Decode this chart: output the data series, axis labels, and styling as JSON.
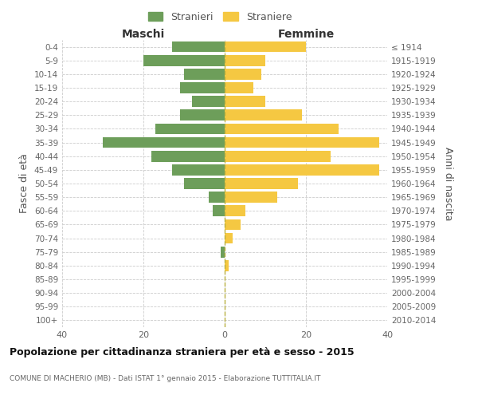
{
  "age_groups": [
    "0-4",
    "5-9",
    "10-14",
    "15-19",
    "20-24",
    "25-29",
    "30-34",
    "35-39",
    "40-44",
    "45-49",
    "50-54",
    "55-59",
    "60-64",
    "65-69",
    "70-74",
    "75-79",
    "80-84",
    "85-89",
    "90-94",
    "95-99",
    "100+"
  ],
  "birth_years": [
    "2010-2014",
    "2005-2009",
    "2000-2004",
    "1995-1999",
    "1990-1994",
    "1985-1989",
    "1980-1984",
    "1975-1979",
    "1970-1974",
    "1965-1969",
    "1960-1964",
    "1955-1959",
    "1950-1954",
    "1945-1949",
    "1940-1944",
    "1935-1939",
    "1930-1934",
    "1925-1929",
    "1920-1924",
    "1915-1919",
    "≤ 1914"
  ],
  "maschi": [
    13,
    20,
    10,
    11,
    8,
    11,
    17,
    30,
    18,
    13,
    10,
    4,
    3,
    0,
    0,
    1,
    0,
    0,
    0,
    0,
    0
  ],
  "femmine": [
    20,
    10,
    9,
    7,
    10,
    19,
    28,
    38,
    26,
    38,
    18,
    13,
    5,
    4,
    2,
    0,
    1,
    0,
    0,
    0,
    0
  ],
  "color_maschi": "#6d9e5a",
  "color_femmine": "#f5c842",
  "title": "Popolazione per cittadinanza straniera per età e sesso - 2015",
  "subtitle": "COMUNE DI MACHERIO (MB) - Dati ISTAT 1° gennaio 2015 - Elaborazione TUTTITALIA.IT",
  "ylabel_left": "Fasce di età",
  "ylabel_right": "Anni di nascita",
  "label_maschi": "Maschi",
  "label_femmine": "Femmine",
  "legend_maschi": "Stranieri",
  "legend_femmine": "Straniere",
  "xlim": 40,
  "background_color": "#ffffff",
  "grid_color": "#cccccc"
}
